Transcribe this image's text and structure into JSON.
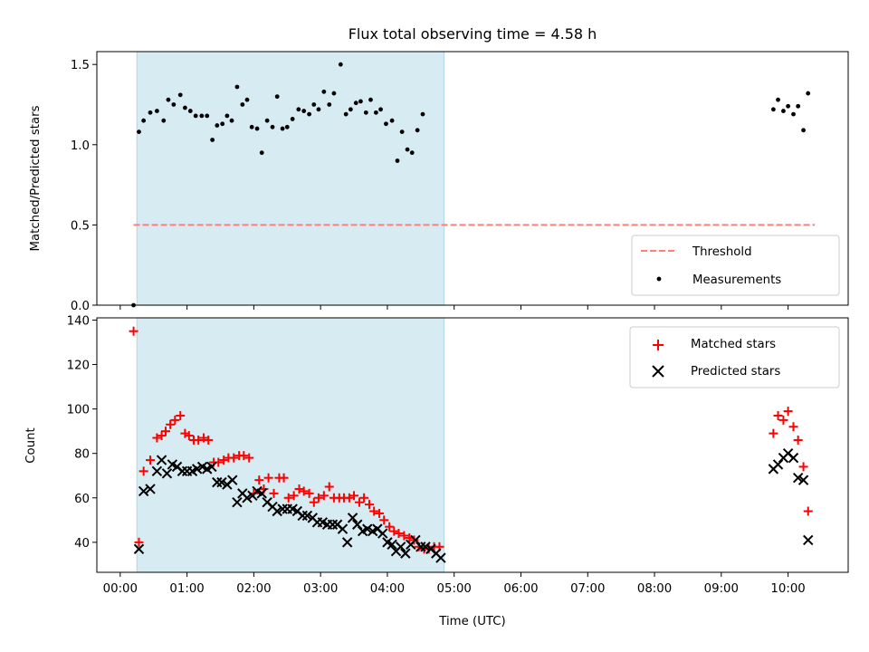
{
  "figure": {
    "title": "Flux total observing time = 4.58 h"
  },
  "chart_data": [
    {
      "type": "scatter",
      "panel": "top",
      "title": "Flux total observing time = 4.58 h",
      "xlabel": "",
      "ylabel": "Matched/Predicted stars",
      "ylim": [
        0,
        1.58
      ],
      "yticks": [
        "0.0",
        "0.5",
        "1.0",
        "1.5"
      ],
      "shaded_region": {
        "x_start_hours": 0.25,
        "x_end_hours": 4.85,
        "color": "#add8e6"
      },
      "threshold": {
        "name": "Threshold",
        "value": 0.5,
        "x_start_hours": 0.2,
        "x_end_hours": 10.4,
        "color": "#ff7f7f",
        "style": "dashed"
      },
      "legend_position": "bottom-right",
      "legend": [
        "Threshold",
        "Measurements"
      ],
      "series": [
        {
          "name": "Measurements",
          "marker": "dot",
          "color": "#000000",
          "points": [
            [
              0.2,
              0.0
            ],
            [
              0.28,
              1.08
            ],
            [
              0.35,
              1.15
            ],
            [
              0.45,
              1.2
            ],
            [
              0.55,
              1.21
            ],
            [
              0.65,
              1.15
            ],
            [
              0.72,
              1.28
            ],
            [
              0.8,
              1.25
            ],
            [
              0.9,
              1.31
            ],
            [
              0.97,
              1.23
            ],
            [
              1.05,
              1.21
            ],
            [
              1.13,
              1.18
            ],
            [
              1.22,
              1.18
            ],
            [
              1.3,
              1.18
            ],
            [
              1.38,
              1.03
            ],
            [
              1.45,
              1.12
            ],
            [
              1.53,
              1.13
            ],
            [
              1.6,
              1.18
            ],
            [
              1.67,
              1.15
            ],
            [
              1.75,
              1.36
            ],
            [
              1.83,
              1.25
            ],
            [
              1.9,
              1.28
            ],
            [
              1.97,
              1.11
            ],
            [
              2.05,
              1.1
            ],
            [
              2.12,
              0.95
            ],
            [
              2.2,
              1.15
            ],
            [
              2.28,
              1.11
            ],
            [
              2.35,
              1.3
            ],
            [
              2.43,
              1.1
            ],
            [
              2.5,
              1.11
            ],
            [
              2.58,
              1.16
            ],
            [
              2.67,
              1.22
            ],
            [
              2.75,
              1.21
            ],
            [
              2.83,
              1.19
            ],
            [
              2.9,
              1.25
            ],
            [
              2.97,
              1.22
            ],
            [
              3.05,
              1.33
            ],
            [
              3.13,
              1.25
            ],
            [
              3.2,
              1.32
            ],
            [
              3.3,
              1.5
            ],
            [
              3.38,
              1.19
            ],
            [
              3.45,
              1.22
            ],
            [
              3.53,
              1.26
            ],
            [
              3.6,
              1.27
            ],
            [
              3.68,
              1.2
            ],
            [
              3.75,
              1.28
            ],
            [
              3.83,
              1.2
            ],
            [
              3.9,
              1.22
            ],
            [
              3.98,
              1.13
            ],
            [
              4.07,
              1.15
            ],
            [
              4.15,
              0.9
            ],
            [
              4.22,
              1.08
            ],
            [
              4.3,
              0.97
            ],
            [
              4.37,
              0.95
            ],
            [
              4.45,
              1.09
            ],
            [
              4.53,
              1.19
            ],
            [
              9.78,
              1.22
            ],
            [
              9.85,
              1.28
            ],
            [
              9.93,
              1.21
            ],
            [
              10.0,
              1.24
            ],
            [
              10.08,
              1.19
            ],
            [
              10.15,
              1.24
            ],
            [
              10.23,
              1.09
            ],
            [
              10.3,
              1.32
            ]
          ]
        }
      ]
    },
    {
      "type": "scatter",
      "panel": "bottom",
      "xlabel": "Time (UTC)",
      "ylabel": "Count",
      "xlim_hours": [
        -0.35,
        10.9
      ],
      "ylim": [
        26.5,
        141
      ],
      "yticks": [
        "40",
        "60",
        "80",
        "100",
        "120",
        "140"
      ],
      "xticks": [
        "00:00",
        "01:00",
        "02:00",
        "03:00",
        "04:00",
        "05:00",
        "06:00",
        "07:00",
        "08:00",
        "09:00",
        "10:00"
      ],
      "shaded_region": {
        "x_start_hours": 0.25,
        "x_end_hours": 4.85,
        "color": "#add8e6"
      },
      "legend_position": "top-right",
      "legend": [
        "Matched stars",
        "Predicted stars"
      ],
      "series": [
        {
          "name": "Matched stars",
          "marker": "plus",
          "color": "#ff0000",
          "points": [
            [
              0.2,
              135
            ],
            [
              0.28,
              40
            ],
            [
              0.35,
              72
            ],
            [
              0.45,
              77
            ],
            [
              0.55,
              87
            ],
            [
              0.62,
              88
            ],
            [
              0.68,
              90
            ],
            [
              0.75,
              93
            ],
            [
              0.82,
              95
            ],
            [
              0.9,
              97
            ],
            [
              0.97,
              89
            ],
            [
              1.03,
              88
            ],
            [
              1.1,
              86
            ],
            [
              1.17,
              86
            ],
            [
              1.25,
              87
            ],
            [
              1.32,
              86
            ],
            [
              1.4,
              76
            ],
            [
              1.47,
              76
            ],
            [
              1.55,
              77
            ],
            [
              1.62,
              78
            ],
            [
              1.7,
              78
            ],
            [
              1.78,
              79
            ],
            [
              1.85,
              79
            ],
            [
              1.93,
              78
            ],
            [
              2.0,
              62
            ],
            [
              2.08,
              68
            ],
            [
              2.15,
              64
            ],
            [
              2.22,
              69
            ],
            [
              2.3,
              62
            ],
            [
              2.38,
              69
            ],
            [
              2.45,
              69
            ],
            [
              2.52,
              60
            ],
            [
              2.6,
              61
            ],
            [
              2.68,
              64
            ],
            [
              2.75,
              63
            ],
            [
              2.83,
              62
            ],
            [
              2.9,
              58
            ],
            [
              2.97,
              60
            ],
            [
              3.05,
              61
            ],
            [
              3.13,
              65
            ],
            [
              3.2,
              60
            ],
            [
              3.28,
              60
            ],
            [
              3.35,
              60
            ],
            [
              3.43,
              60
            ],
            [
              3.5,
              61
            ],
            [
              3.58,
              58
            ],
            [
              3.65,
              60
            ],
            [
              3.73,
              57
            ],
            [
              3.8,
              54
            ],
            [
              3.88,
              53
            ],
            [
              3.95,
              50
            ],
            [
              4.03,
              47
            ],
            [
              4.1,
              45
            ],
            [
              4.17,
              44
            ],
            [
              4.25,
              43
            ],
            [
              4.33,
              42
            ],
            [
              4.4,
              41
            ],
            [
              4.47,
              38
            ],
            [
              4.55,
              37
            ],
            [
              4.62,
              37
            ],
            [
              4.7,
              38
            ],
            [
              4.78,
              38
            ],
            [
              9.78,
              89
            ],
            [
              9.85,
              97
            ],
            [
              9.93,
              95
            ],
            [
              10.0,
              99
            ],
            [
              10.08,
              92
            ],
            [
              10.15,
              86
            ],
            [
              10.23,
              74
            ],
            [
              10.3,
              54
            ]
          ]
        },
        {
          "name": "Predicted stars",
          "marker": "x",
          "color": "#000000",
          "points": [
            [
              0.28,
              37
            ],
            [
              0.35,
              63
            ],
            [
              0.45,
              64
            ],
            [
              0.55,
              72
            ],
            [
              0.62,
              77
            ],
            [
              0.7,
              71
            ],
            [
              0.78,
              75
            ],
            [
              0.85,
              74
            ],
            [
              0.93,
              72
            ],
            [
              1.0,
              72
            ],
            [
              1.08,
              72
            ],
            [
              1.15,
              73
            ],
            [
              1.23,
              74
            ],
            [
              1.3,
              73
            ],
            [
              1.37,
              74
            ],
            [
              1.45,
              67
            ],
            [
              1.52,
              67
            ],
            [
              1.6,
              66
            ],
            [
              1.68,
              68
            ],
            [
              1.75,
              58
            ],
            [
              1.83,
              62
            ],
            [
              1.9,
              60
            ],
            [
              1.98,
              61
            ],
            [
              2.05,
              63
            ],
            [
              2.12,
              62
            ],
            [
              2.2,
              58
            ],
            [
              2.28,
              56
            ],
            [
              2.35,
              54
            ],
            [
              2.43,
              55
            ],
            [
              2.5,
              55
            ],
            [
              2.58,
              55
            ],
            [
              2.65,
              54
            ],
            [
              2.73,
              52
            ],
            [
              2.8,
              52
            ],
            [
              2.88,
              51
            ],
            [
              2.95,
              49
            ],
            [
              3.03,
              49
            ],
            [
              3.1,
              48
            ],
            [
              3.18,
              48
            ],
            [
              3.25,
              48
            ],
            [
              3.33,
              46
            ],
            [
              3.4,
              40
            ],
            [
              3.48,
              51
            ],
            [
              3.55,
              48
            ],
            [
              3.63,
              45
            ],
            [
              3.7,
              46
            ],
            [
              3.78,
              45
            ],
            [
              3.85,
              46
            ],
            [
              3.93,
              44
            ],
            [
              4.0,
              40
            ],
            [
              4.07,
              39
            ],
            [
              4.13,
              36
            ],
            [
              4.2,
              38
            ],
            [
              4.27,
              35
            ],
            [
              4.35,
              39
            ],
            [
              4.42,
              41
            ],
            [
              4.5,
              38
            ],
            [
              4.57,
              38
            ],
            [
              4.65,
              37
            ],
            [
              4.73,
              35
            ],
            [
              4.8,
              33
            ],
            [
              9.78,
              73
            ],
            [
              9.85,
              75
            ],
            [
              9.93,
              78
            ],
            [
              10.0,
              80
            ],
            [
              10.08,
              78
            ],
            [
              10.15,
              69
            ],
            [
              10.23,
              68
            ],
            [
              10.3,
              41
            ]
          ]
        }
      ]
    }
  ]
}
